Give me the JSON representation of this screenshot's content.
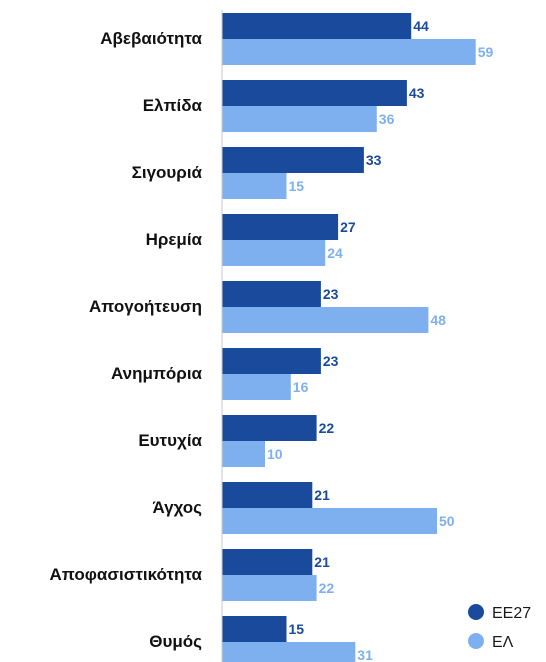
{
  "chart_data": {
    "type": "bar",
    "orientation": "horizontal",
    "title": "",
    "xlabel": "",
    "ylabel": "",
    "xlim": [
      0,
      80
    ],
    "grid": false,
    "legend_position": "bottom-right",
    "categories": [
      "Αβεβαιότητα",
      "Ελπίδα",
      "Σιγουριά",
      "Ηρεμία",
      "Απογοήτευση",
      "Ανημπόρια",
      "Ευτυχία",
      "Άγχος",
      "Αποφασιστικότητα",
      "Θυμός"
    ],
    "series": [
      {
        "name": "ΕΕ27",
        "color": "#1a4a9c",
        "values": [
          44,
          43,
          33,
          27,
          23,
          23,
          22,
          21,
          21,
          15
        ]
      },
      {
        "name": "ΕΛ",
        "color": "#7eb0f0",
        "values": [
          59,
          36,
          15,
          24,
          48,
          16,
          10,
          50,
          22,
          31
        ]
      }
    ]
  }
}
